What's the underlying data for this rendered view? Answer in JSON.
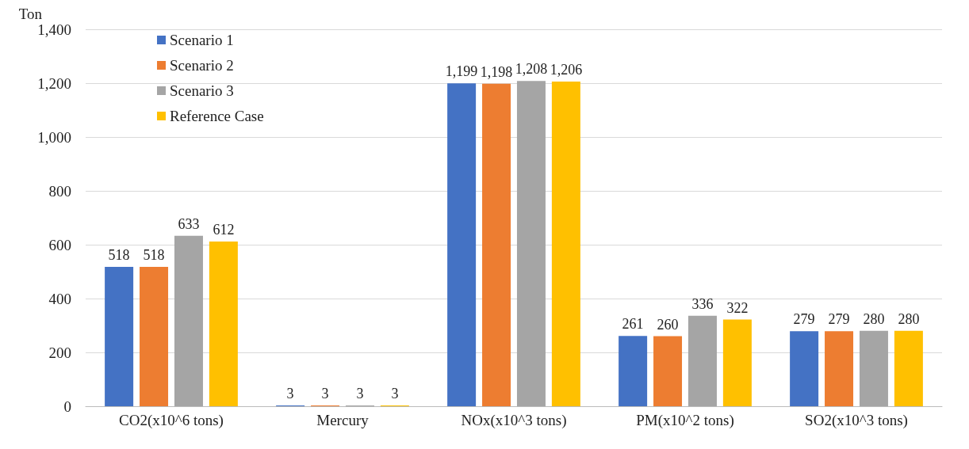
{
  "chart_data": {
    "type": "bar",
    "ylabel": "Ton",
    "categories": [
      "CO2(x10^6 tons)",
      "Mercury",
      "NOx(x10^3 tons)",
      "PM(x10^2 tons)",
      "SO2(x10^3 tons)"
    ],
    "series": [
      {
        "name": "Scenario 1",
        "color": "#4472c4",
        "values": [
          518,
          3,
          1199,
          261,
          279
        ],
        "value_labels": [
          "518",
          "3",
          "1,199",
          "261",
          "279"
        ]
      },
      {
        "name": "Scenario 2",
        "color": "#ed7d31",
        "values": [
          518,
          3,
          1198,
          260,
          279
        ],
        "value_labels": [
          "518",
          "3",
          "1,198",
          "260",
          "279"
        ]
      },
      {
        "name": "Scenario 3",
        "color": "#a5a5a5",
        "values": [
          633,
          3,
          1208,
          336,
          280
        ],
        "value_labels": [
          "633",
          "3",
          "1,208",
          "336",
          "280"
        ]
      },
      {
        "name": "Reference Case",
        "color": "#ffc000",
        "values": [
          612,
          3,
          1206,
          322,
          280
        ],
        "value_labels": [
          "612",
          "3",
          "1,206",
          "322",
          "280"
        ]
      }
    ],
    "ylim": [
      0,
      1400
    ],
    "yticks": [
      0,
      200,
      400,
      600,
      800,
      {
        "value": 1000,
        "label": "1,000"
      },
      {
        "value": 1200,
        "label": "1,200"
      },
      {
        "value": 1400,
        "label": "1,400"
      }
    ],
    "grid": "y",
    "legend": "top left"
  }
}
